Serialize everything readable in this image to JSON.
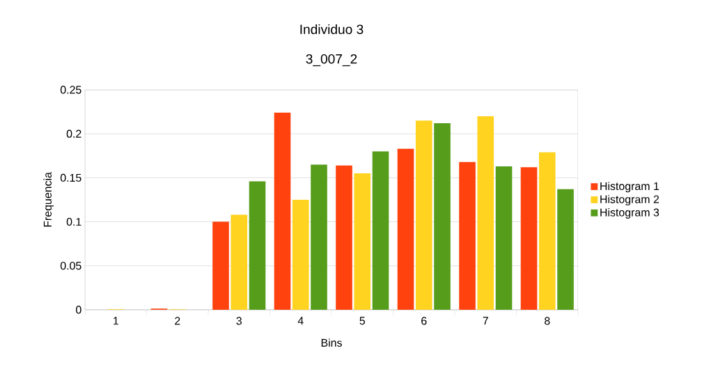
{
  "chart_data": {
    "type": "bar",
    "title": "Individuo 3",
    "subtitle": "3_007_2",
    "xlabel": "Bins",
    "ylabel": "Frequencia",
    "categories": [
      "1",
      "2",
      "3",
      "4",
      "5",
      "6",
      "7",
      "8"
    ],
    "series": [
      {
        "name": "Histogram 1",
        "color": "#ff420e",
        "values": [
          0,
          0.0013,
          0.1,
          0.224,
          0.164,
          0.183,
          0.168,
          0.162
        ]
      },
      {
        "name": "Histogram 2",
        "color": "#ffd320",
        "values": [
          0.0005,
          0.0005,
          0.108,
          0.125,
          0.155,
          0.215,
          0.22,
          0.179
        ]
      },
      {
        "name": "Histogram 3",
        "color": "#579d1c",
        "values": [
          0,
          0,
          0.146,
          0.165,
          0.18,
          0.212,
          0.163,
          0.137
        ]
      }
    ],
    "ylim": [
      0,
      0.25
    ],
    "yticks": [
      0,
      0.05,
      0.1,
      0.15,
      0.2,
      0.25
    ],
    "grid": "y",
    "legend": "right"
  }
}
